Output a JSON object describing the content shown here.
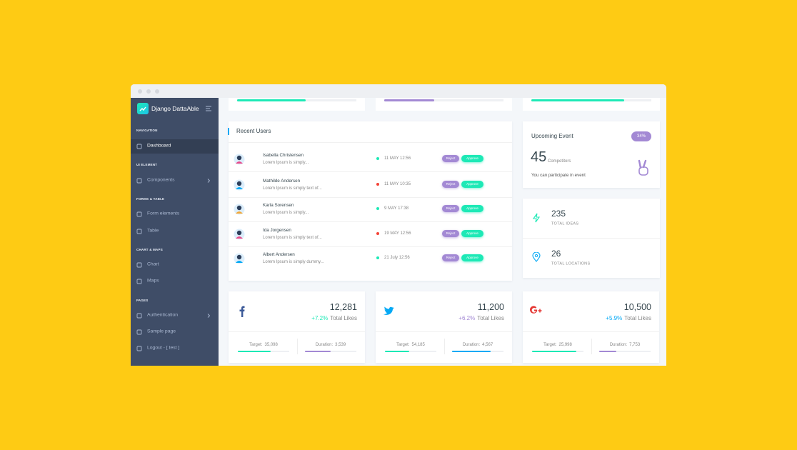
{
  "sidebar": {
    "brand": "Django DattaAble",
    "sections": [
      {
        "title": "NAVIGATION",
        "items": [
          "Dashboard"
        ]
      },
      {
        "title": "UI ELEMENT",
        "items": [
          "Components"
        ]
      },
      {
        "title": "FORMS & TABLE",
        "items": [
          "Form elements",
          "Table"
        ]
      },
      {
        "title": "CHART & MAPS",
        "items": [
          "Chart",
          "Maps"
        ]
      },
      {
        "title": "PAGES",
        "items": [
          "Authentication",
          "Sample page",
          "Logout - [ test ]"
        ]
      }
    ]
  },
  "recent_users": {
    "title": "Recent Users",
    "buttons": {
      "reject": "Reject",
      "approve": "Approve"
    },
    "rows": [
      {
        "name": "Isabella Christensen",
        "text": "Lorem Ipsum is simply...",
        "date": "11 MAY 12:56"
      },
      {
        "name": "Mathilde Andersen",
        "text": "Lorem Ipsum is simply text of...",
        "date": "11 MAY 10:35"
      },
      {
        "name": "Karla Sorensen",
        "text": "Lorem Ipsum is simply...",
        "date": "9 MAY 17:38"
      },
      {
        "name": "Ida Jorgensen",
        "text": "Lorem Ipsum is simply text of...",
        "date": "19 MAY 12:56"
      },
      {
        "name": "Albert Andersen",
        "text": "Lorem Ipsum is simply dummy...",
        "date": "21 July 12:56"
      }
    ]
  },
  "upcoming_event": {
    "title": "Upcoming Event",
    "badge": "34%",
    "count": "45",
    "count_label": "Competitors",
    "text": "You can participate in event"
  },
  "stats": [
    {
      "value": "235",
      "label": "TOTAL IDEAS"
    },
    {
      "value": "26",
      "label": "TOTAL LOCATIONS"
    }
  ],
  "social": [
    {
      "value": "12,281",
      "change": "+7.2%",
      "change_label": "Total Likes",
      "target_label": "Target:",
      "target": "35,098",
      "duration_label": "Duration:",
      "duration": "3,539"
    },
    {
      "value": "11,200",
      "change": "+6.2%",
      "change_label": "Total Likes",
      "target_label": "Target:",
      "target": "54,185",
      "duration_label": "Duration:",
      "duration": "4,567"
    },
    {
      "value": "10,500",
      "change": "+5.9%",
      "change_label": "Total Likes",
      "target_label": "Target:",
      "target": "25,998",
      "duration_label": "Duration:",
      "duration": "7,753"
    }
  ]
}
